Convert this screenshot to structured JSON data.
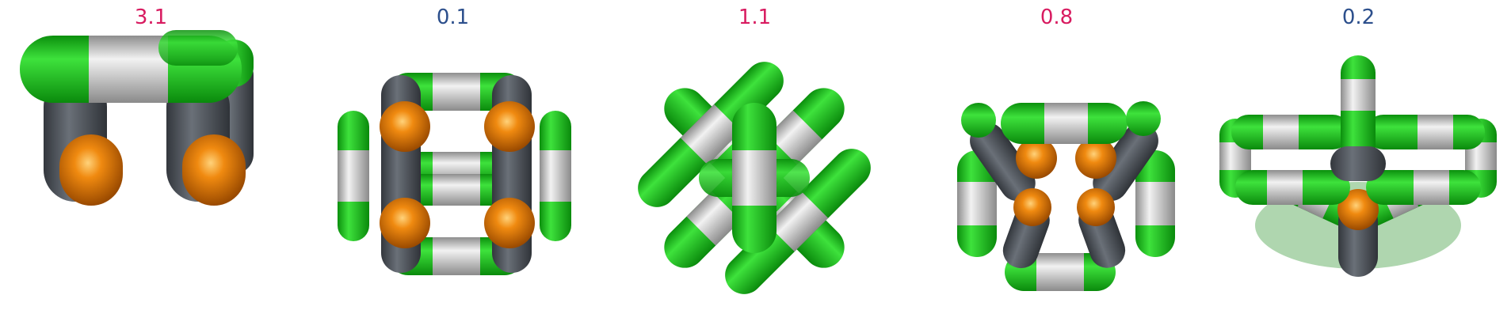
{
  "colors": {
    "green": "#19c61a",
    "grey": "#b8b8b8",
    "dark": "#4b5058",
    "orange": "#e77a06",
    "label_positive": "#d81b60",
    "label_negative": "#2c4f8c"
  },
  "panels": [
    {
      "value_label": "3.1",
      "sign": "pos"
    },
    {
      "value_label": "0.1",
      "sign": "neg"
    },
    {
      "value_label": "1.1",
      "sign": "pos"
    },
    {
      "value_label": "0.8",
      "sign": "pos"
    },
    {
      "value_label": "0.2",
      "sign": "neg"
    }
  ]
}
